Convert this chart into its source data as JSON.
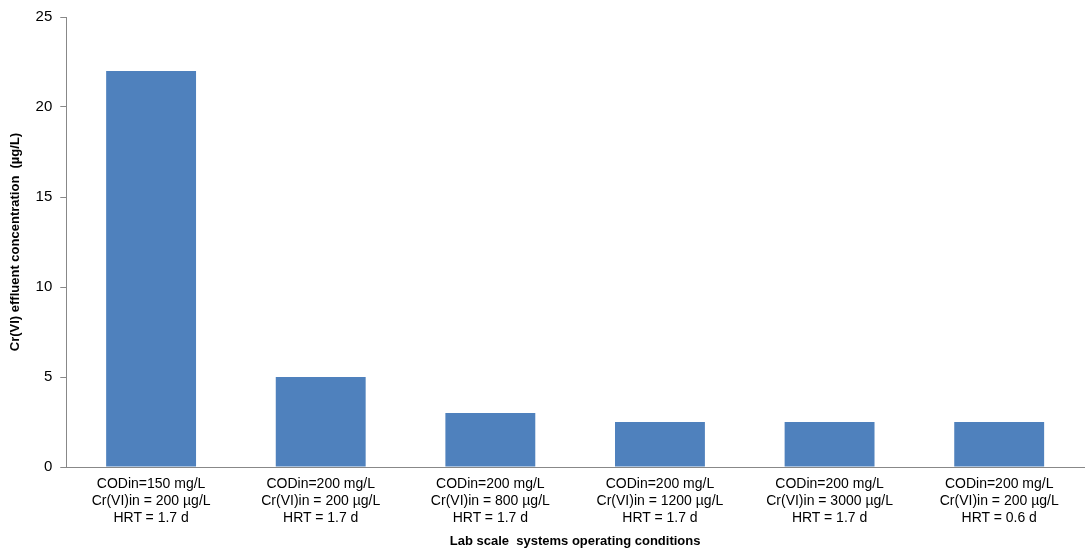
{
  "chart_data": {
    "type": "bar",
    "xlabel": "Lab scale  systems operating conditions",
    "ylabel": "Cr(VI) effluent concentration  (µg/L)",
    "categories": [
      "CODin=150 mg/L\nCr(VI)in = 200 µg/L\nHRT = 1.7 d",
      "CODin=200 mg/L\nCr(VI)in = 200 µg/L\nHRT = 1.7 d",
      "CODin=200 mg/L\nCr(VI)in = 800 µg/L\nHRT = 1.7 d",
      "CODin=200 mg/L\nCr(VI)in = 1200 µg/L\nHRT = 1.7 d",
      "CODin=200 mg/L\nCr(VI)in = 3000 µg/L\nHRT = 1.7 d",
      "CODin=200 mg/L\nCr(VI)in = 200 µg/L\nHRT = 0.6 d"
    ],
    "values": [
      22,
      5,
      3,
      2.5,
      2.5,
      2.5
    ],
    "color": "#4f81bd",
    "ylim": [
      0,
      25
    ],
    "yticks": [
      0,
      5,
      10,
      15,
      20,
      25
    ],
    "grid": false,
    "legend": false
  }
}
